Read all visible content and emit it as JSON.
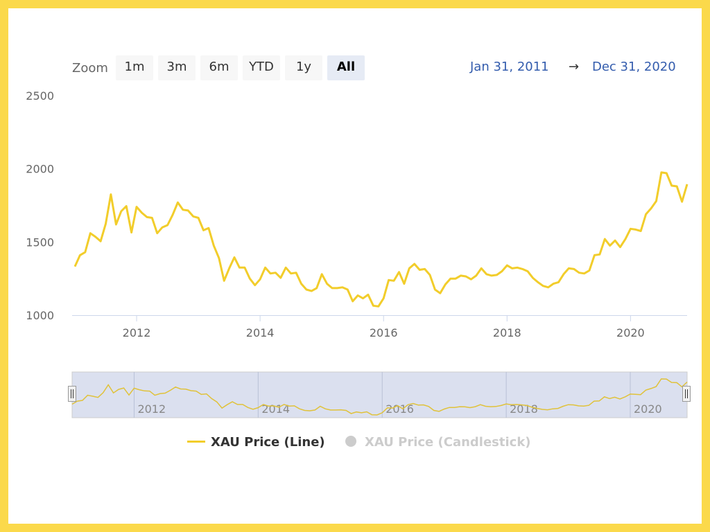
{
  "toolbar": {
    "zoom_label": "Zoom",
    "buttons": [
      {
        "label": "1m",
        "active": false
      },
      {
        "label": "3m",
        "active": false
      },
      {
        "label": "6m",
        "active": false
      },
      {
        "label": "YTD",
        "active": false
      },
      {
        "label": "1y",
        "active": false
      },
      {
        "label": "All",
        "active": true
      }
    ],
    "range_from": "Jan 31, 2011",
    "range_arrow": "→",
    "range_to": "Dec 31, 2020"
  },
  "legend": {
    "line_label": "XAU Price (Line)",
    "candle_label": "XAU Price (Candlestick)"
  },
  "colors": {
    "line": "#f2cd2b",
    "navigator_fill": "#dbe0ef",
    "range_text": "#335cad",
    "border": "#fbd94b"
  },
  "chart_data": {
    "type": "line",
    "title": "",
    "xlabel": "",
    "ylabel": "",
    "ylim": [
      1000,
      2500
    ],
    "yticks": [
      1000,
      1500,
      2000,
      2500
    ],
    "xticks": [
      "2012",
      "2014",
      "2016",
      "2018",
      "2020"
    ],
    "x_range": [
      "2011-01",
      "2020-12"
    ],
    "series": [
      {
        "name": "XAU Price (Line)",
        "x": [
          "2011-01",
          "2011-02",
          "2011-03",
          "2011-04",
          "2011-05",
          "2011-06",
          "2011-07",
          "2011-08",
          "2011-09",
          "2011-10",
          "2011-11",
          "2011-12",
          "2012-01",
          "2012-02",
          "2012-03",
          "2012-04",
          "2012-05",
          "2012-06",
          "2012-07",
          "2012-08",
          "2012-09",
          "2012-10",
          "2012-11",
          "2012-12",
          "2013-01",
          "2013-02",
          "2013-03",
          "2013-04",
          "2013-05",
          "2013-06",
          "2013-07",
          "2013-08",
          "2013-09",
          "2013-10",
          "2013-11",
          "2013-12",
          "2014-01",
          "2014-02",
          "2014-03",
          "2014-04",
          "2014-05",
          "2014-06",
          "2014-07",
          "2014-08",
          "2014-09",
          "2014-10",
          "2014-11",
          "2014-12",
          "2015-01",
          "2015-02",
          "2015-03",
          "2015-04",
          "2015-05",
          "2015-06",
          "2015-07",
          "2015-08",
          "2015-09",
          "2015-10",
          "2015-11",
          "2015-12",
          "2016-01",
          "2016-02",
          "2016-03",
          "2016-04",
          "2016-05",
          "2016-06",
          "2016-07",
          "2016-08",
          "2016-09",
          "2016-10",
          "2016-11",
          "2016-12",
          "2017-01",
          "2017-02",
          "2017-03",
          "2017-04",
          "2017-05",
          "2017-06",
          "2017-07",
          "2017-08",
          "2017-09",
          "2017-10",
          "2017-11",
          "2017-12",
          "2018-01",
          "2018-02",
          "2018-03",
          "2018-04",
          "2018-05",
          "2018-06",
          "2018-07",
          "2018-08",
          "2018-09",
          "2018-10",
          "2018-11",
          "2018-12",
          "2019-01",
          "2019-02",
          "2019-03",
          "2019-04",
          "2019-05",
          "2019-06",
          "2019-07",
          "2019-08",
          "2019-09",
          "2019-10",
          "2019-11",
          "2019-12",
          "2020-01",
          "2020-02",
          "2020-03",
          "2020-04",
          "2020-05",
          "2020-06",
          "2020-07",
          "2020-08",
          "2020-09",
          "2020-10",
          "2020-11",
          "2020-12"
        ],
        "values": [
          1332,
          1410,
          1430,
          1560,
          1535,
          1505,
          1625,
          1825,
          1620,
          1710,
          1745,
          1565,
          1740,
          1700,
          1670,
          1665,
          1560,
          1600,
          1615,
          1685,
          1770,
          1720,
          1715,
          1675,
          1665,
          1580,
          1595,
          1475,
          1390,
          1235,
          1320,
          1395,
          1325,
          1325,
          1250,
          1205,
          1245,
          1325,
          1285,
          1290,
          1255,
          1325,
          1285,
          1290,
          1215,
          1175,
          1165,
          1185,
          1280,
          1215,
          1185,
          1185,
          1190,
          1175,
          1095,
          1135,
          1115,
          1140,
          1065,
          1060,
          1115,
          1240,
          1235,
          1295,
          1215,
          1320,
          1350,
          1310,
          1315,
          1275,
          1175,
          1150,
          1210,
          1250,
          1250,
          1270,
          1265,
          1245,
          1270,
          1320,
          1280,
          1270,
          1275,
          1300,
          1340,
          1320,
          1325,
          1315,
          1300,
          1255,
          1225,
          1200,
          1190,
          1215,
          1225,
          1280,
          1320,
          1315,
          1290,
          1285,
          1305,
          1410,
          1415,
          1520,
          1475,
          1510,
          1465,
          1520,
          1590,
          1585,
          1575,
          1690,
          1730,
          1780,
          1975,
          1970,
          1885,
          1880,
          1775,
          1895
        ]
      }
    ]
  }
}
